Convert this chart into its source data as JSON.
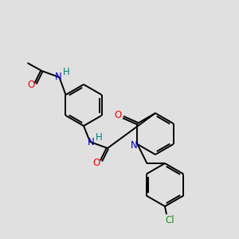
{
  "background_color": "#e0e0e0",
  "bond_color": "#000000",
  "atom_colors": {
    "O": "#ff0000",
    "N": "#0000cd",
    "H": "#008080",
    "Cl": "#228b22",
    "C": "#000000"
  },
  "figsize": [
    3.0,
    3.0
  ],
  "dpi": 100
}
